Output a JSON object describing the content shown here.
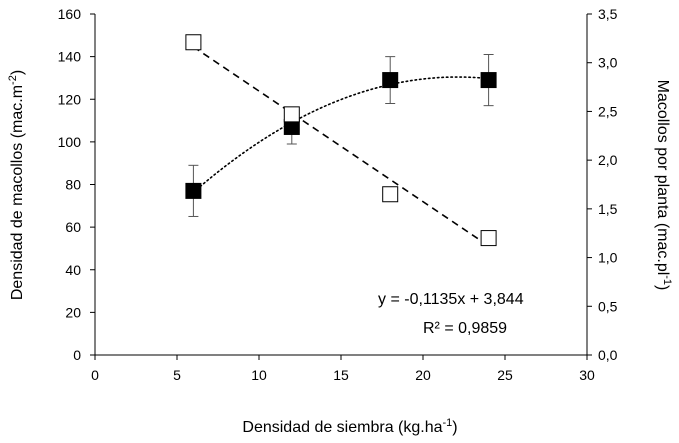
{
  "chart_data": {
    "type": "scatter",
    "title": "",
    "xlabel": {
      "main": "Densidad de siembra (kg.ha",
      "sup": "-1",
      "tail": ")"
    },
    "ylabel_left": {
      "main": "Densidad de macollos (mac.m",
      "sup": "-2",
      "tail": ")"
    },
    "ylabel_right": {
      "main": "Macollos por planta (mac.pl",
      "sup": "-1",
      "tail": ")"
    },
    "xlim": [
      0,
      30
    ],
    "ylim_left": [
      0,
      160
    ],
    "ylim_right": [
      0,
      3.5
    ],
    "x_ticks": [
      "0",
      "5",
      "10",
      "15",
      "20",
      "25",
      "30"
    ],
    "y_left_ticks": [
      "0",
      "20",
      "40",
      "60",
      "80",
      "100",
      "120",
      "140",
      "160"
    ],
    "y_right_ticks": [
      "0,0",
      "0,5",
      "1,0",
      "1,5",
      "2,0",
      "2,5",
      "3,0",
      "3,5"
    ],
    "grid": false,
    "series": [
      {
        "axis": "left",
        "marker": "filled-square",
        "color": "#000000",
        "x": [
          6,
          12,
          18,
          24
        ],
        "y": [
          77,
          107,
          129,
          129
        ],
        "error_low": [
          12,
          8,
          11,
          12
        ],
        "error_high": [
          12,
          8,
          11,
          12
        ],
        "trendline": {
          "style": "dotted",
          "kind": "quadratic"
        }
      },
      {
        "axis": "right",
        "marker": "open-square",
        "color": "#000000",
        "x": [
          6,
          12,
          18,
          24
        ],
        "y": [
          3.21,
          2.47,
          1.65,
          1.2
        ],
        "trendline": {
          "style": "dashed",
          "kind": "linear",
          "slope": -0.1135,
          "intercept": 3.844
        }
      }
    ],
    "annotations": [
      "y =  -0,1135x + 3,844",
      "R² = 0,9859"
    ]
  }
}
